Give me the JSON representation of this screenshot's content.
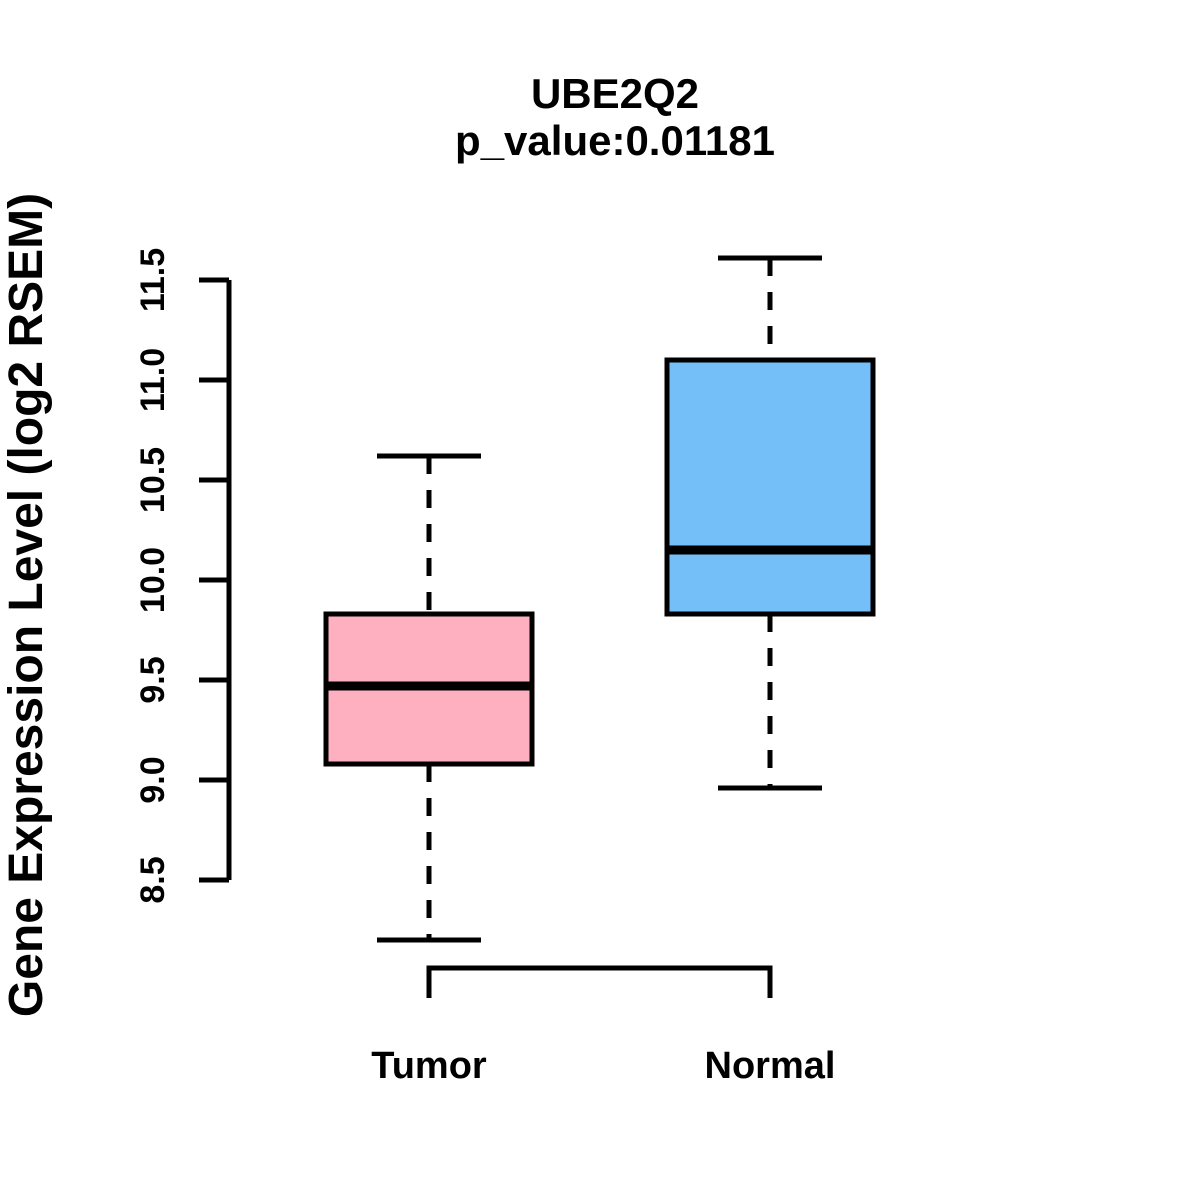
{
  "page": {
    "background_color": "#FFFFFF"
  },
  "chart_data": {
    "type": "boxplot",
    "title": "UBE2Q2",
    "subtitle": "p_value:0.01181",
    "ylabel": "Gene Expression Level (log2 RSEM)",
    "xlabel": "",
    "ylim": [
      8.5,
      11.5
    ],
    "ytick_labels": [
      "8.5",
      "9.0",
      "9.5",
      "10.0",
      "10.5",
      "11.0",
      "11.5"
    ],
    "ytick_values": [
      8.5,
      9.0,
      9.5,
      10.0,
      10.5,
      11.0,
      11.5
    ],
    "grid": false,
    "legend": "none",
    "stroke_color": "#000000",
    "groups": [
      {
        "label": "Tumor",
        "fill_color": "#FFB0C0",
        "whisker_low": 8.2,
        "q1": 9.08,
        "median": 9.47,
        "q3": 9.83,
        "whisker_high": 10.62
      },
      {
        "label": "Normal",
        "fill_color": "#74BFF8",
        "whisker_low": 8.96,
        "q1": 9.83,
        "median": 10.15,
        "q3": 11.1,
        "whisker_high": 11.61
      }
    ]
  }
}
